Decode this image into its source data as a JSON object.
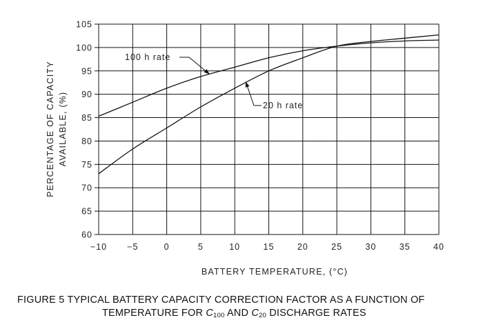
{
  "chart_data": {
    "type": "line",
    "title": "",
    "xlabel": "BATTERY TEMPERATURE, (°C)",
    "ylabel_lines": [
      "PERCENTAGE OF CAPACITY",
      "AVAILABLE, (%)"
    ],
    "xlim": [
      -10,
      40
    ],
    "ylim": [
      60,
      105
    ],
    "x_ticks": [
      -10,
      -5,
      0,
      5,
      10,
      15,
      20,
      25,
      30,
      35,
      40
    ],
    "x_tick_labels": [
      "−10",
      "−5",
      "0",
      "5",
      "10",
      "15",
      "20",
      "25",
      "30",
      "35",
      "40"
    ],
    "y_ticks": [
      60,
      65,
      70,
      75,
      80,
      85,
      90,
      95,
      100,
      105
    ],
    "y_tick_labels": [
      "60",
      "65",
      "70",
      "75",
      "80",
      "85",
      "90",
      "95",
      "100",
      "105"
    ],
    "grid": true,
    "series": [
      {
        "name": "100 h rate",
        "x": [
          -10,
          -5,
          0,
          5,
          10,
          15,
          20,
          25,
          30,
          35,
          40
        ],
        "y": [
          85.3,
          88.3,
          91.3,
          93.8,
          95.8,
          97.8,
          99.3,
          100.3,
          101.0,
          101.4,
          101.6
        ]
      },
      {
        "name": "20 h rate",
        "x": [
          -10,
          -5,
          0,
          5,
          10,
          15,
          20,
          25,
          30,
          35,
          40
        ],
        "y": [
          73.0,
          78.3,
          82.8,
          87.3,
          91.3,
          95.0,
          97.8,
          100.3,
          101.3,
          102.0,
          102.7
        ]
      }
    ],
    "annotations": [
      {
        "text": "100 h rate",
        "series": "100 h rate"
      },
      {
        "text": "20 h rate",
        "series": "20 h rate"
      }
    ]
  },
  "caption": {
    "line1": "FIGURE  5   TYPICAL BATTERY CAPACITY CORRECTION FACTOR AS A FUNCTION OF",
    "line2_pre": "TEMPERATURE FOR ",
    "c100_letter": "C",
    "c100_sub": "100",
    "line2_mid": " AND ",
    "c20_letter": "C",
    "c20_sub": "20",
    "line2_post": " DISCHARGE RATES"
  }
}
